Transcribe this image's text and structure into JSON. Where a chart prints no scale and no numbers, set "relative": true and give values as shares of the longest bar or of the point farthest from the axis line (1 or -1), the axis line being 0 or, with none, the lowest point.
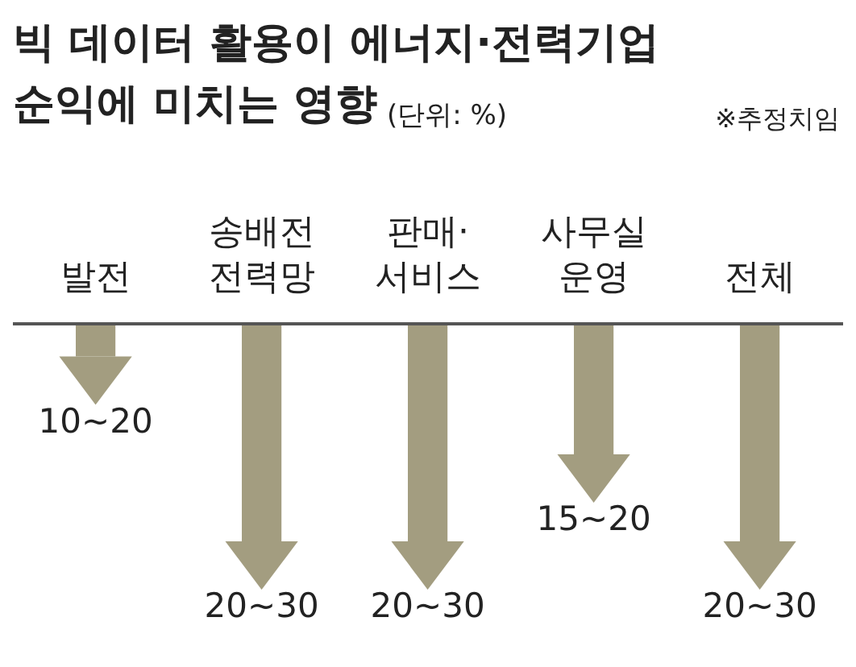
{
  "chart_data": {
    "type": "bar",
    "title": "빅 데이터 활용이 에너지·전력기업\n순익에 미치는 영향",
    "subtitle": "(단위: %)",
    "annotations": [
      "※추정치임",
      {
        "text": "10~20",
        "x": "발전",
        "y": -0.15
      },
      {
        "text": "20~30",
        "x": "송배전\n전력망",
        "y": -1
      },
      {
        "text": "20~30",
        "x": "판매·\n서비스",
        "y": -1
      },
      {
        "text": "15~20",
        "x": "사무실\n운영",
        "y": -0.6
      },
      {
        "text": "20~30",
        "x": "전체",
        "y": -1
      }
    ],
    "categories": [
      "발전",
      "송배전\n전력망",
      "판매·\n서비스",
      "사무실\n운영",
      "전체"
    ],
    "values": [
      -0.15,
      -1,
      -1,
      -0.6,
      -1
    ],
    "relative": true,
    "color": "#a39d80"
  }
}
